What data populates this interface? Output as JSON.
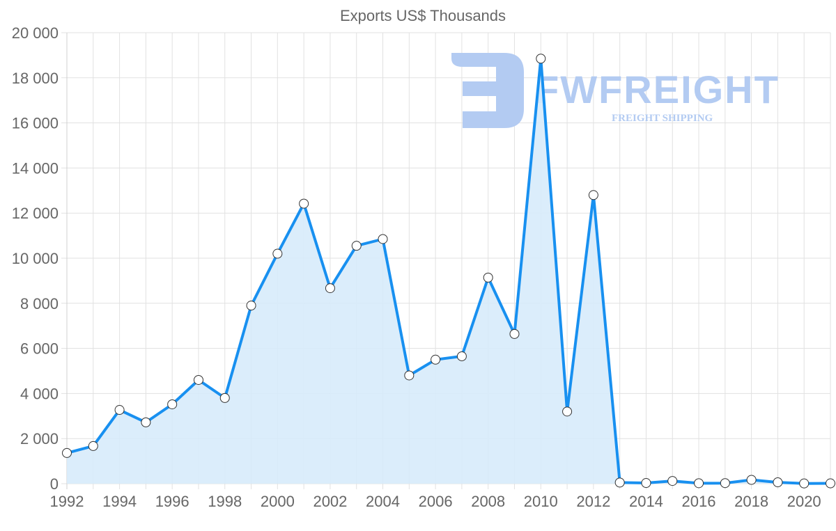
{
  "chart_data": {
    "type": "area",
    "title": "Exports US$ Thousands",
    "xlabel": "",
    "ylabel": "",
    "ylim": [
      0,
      20000
    ],
    "y_ticks": [
      "0",
      "2 000",
      "4 000",
      "6 000",
      "8 000",
      "10 000",
      "12 000",
      "14 000",
      "16 000",
      "18 000",
      "20 000"
    ],
    "x_tick_labels": [
      "1992",
      "1994",
      "1996",
      "1998",
      "2000",
      "2002",
      "2004",
      "2006",
      "2008",
      "2010",
      "2012",
      "2014",
      "2016",
      "2018",
      "2020"
    ],
    "grid": true,
    "legend": "none",
    "x": [
      1992,
      1993,
      1994,
      1995,
      1996,
      1997,
      1998,
      1999,
      2000,
      2001,
      2002,
      2003,
      2004,
      2005,
      2006,
      2007,
      2008,
      2009,
      2010,
      2011,
      2012,
      2013,
      2014,
      2015,
      2016,
      2017,
      2018,
      2019,
      2020,
      2021
    ],
    "series": [
      {
        "name": "Exports",
        "values": [
          1360,
          1670,
          3270,
          2720,
          3520,
          4600,
          3800,
          7900,
          10200,
          12420,
          8670,
          10550,
          10850,
          4800,
          5500,
          5650,
          9140,
          6640,
          18850,
          3200,
          12800,
          50,
          30,
          120,
          20,
          25,
          170,
          60,
          10,
          15
        ]
      }
    ],
    "colors": {
      "line": "#1890f0",
      "fill": "#d7ebfb",
      "point_fill": "#ffffff",
      "point_stroke": "#333333"
    }
  },
  "watermark": {
    "brand": "FWFREIGHT",
    "tagline": "FREIGHT SHIPPING"
  }
}
